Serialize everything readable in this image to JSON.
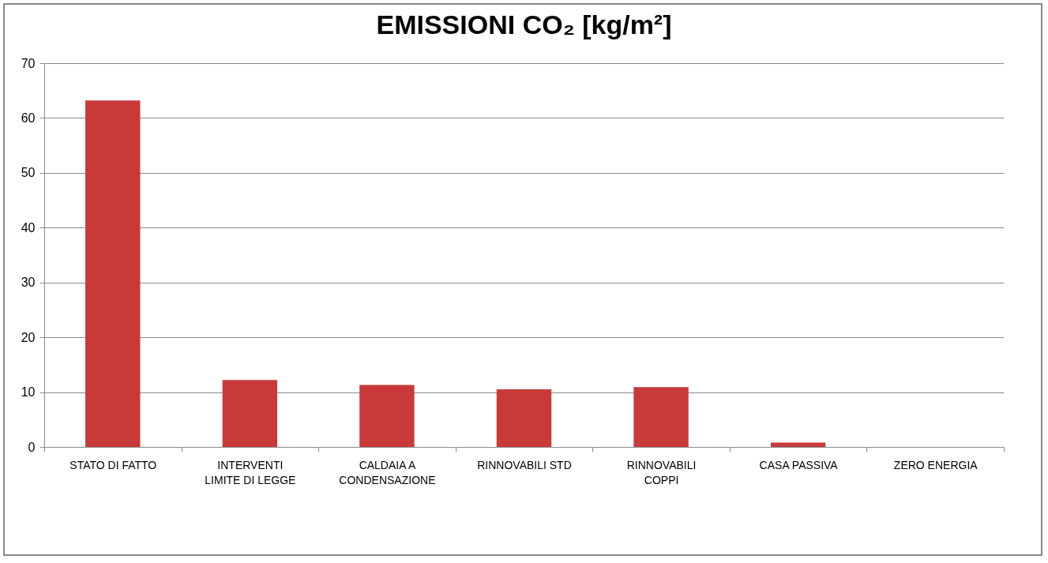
{
  "chart_data": {
    "type": "bar",
    "title": "EMISSIONI CO₂ [kg/m²]",
    "categories": [
      "STATO DI FATTO",
      "INTERVENTI LIMITE DI LEGGE",
      "CALDAIA A CONDENSAZIONE",
      "RINNOVABILI STD",
      "RINNOVABILI COPPI",
      "CASA PASSIVA",
      "ZERO ENERGIA"
    ],
    "values": [
      63.2,
      12.2,
      11.3,
      10.5,
      10.9,
      0.8,
      0
    ],
    "color": "#c83a3a",
    "ylim": [
      0,
      70
    ],
    "yticks": [
      0,
      10,
      20,
      30,
      40,
      50,
      60,
      70
    ],
    "grid": "y"
  }
}
